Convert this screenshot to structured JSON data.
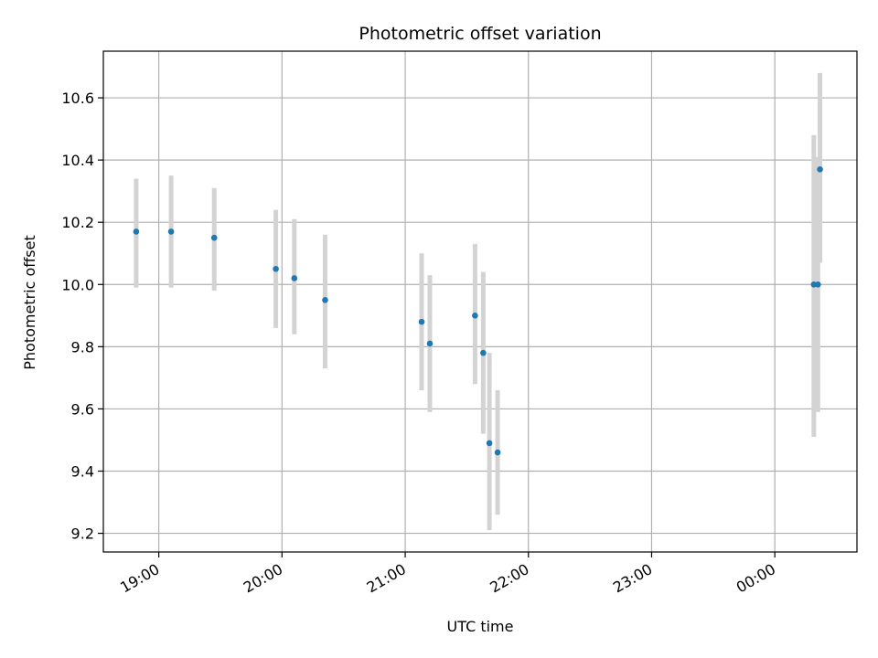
{
  "chart_data": {
    "type": "scatter",
    "title": "Photometric offset variation",
    "xlabel": "UTC time",
    "ylabel": "Photometric offset",
    "x_axis": {
      "kind": "time",
      "ticks": [
        "19:00",
        "20:00",
        "21:00",
        "22:00",
        "23:00",
        "00:00"
      ],
      "range": [
        "18:33",
        "00:40"
      ]
    },
    "y_axis": {
      "ticks": [
        "9.2",
        "9.4",
        "9.6",
        "9.8",
        "10.0",
        "10.2",
        "10.4",
        "10.6"
      ],
      "range": [
        9.14,
        10.75
      ]
    },
    "grid": true,
    "points": [
      {
        "time": "18:49",
        "value": 10.17,
        "err_low": 9.99,
        "err_high": 10.34
      },
      {
        "time": "19:06",
        "value": 10.17,
        "err_low": 9.99,
        "err_high": 10.35
      },
      {
        "time": "19:27",
        "value": 10.15,
        "err_low": 9.98,
        "err_high": 10.31
      },
      {
        "time": "19:57",
        "value": 10.05,
        "err_low": 9.86,
        "err_high": 10.24
      },
      {
        "time": "20:06",
        "value": 10.02,
        "err_low": 9.84,
        "err_high": 10.21
      },
      {
        "time": "20:21",
        "value": 9.95,
        "err_low": 9.73,
        "err_high": 10.16
      },
      {
        "time": "21:08",
        "value": 9.88,
        "err_low": 9.66,
        "err_high": 10.1
      },
      {
        "time": "21:12",
        "value": 9.81,
        "err_low": 9.59,
        "err_high": 10.03
      },
      {
        "time": "21:34",
        "value": 9.9,
        "err_low": 9.68,
        "err_high": 10.13
      },
      {
        "time": "21:38",
        "value": 9.78,
        "err_low": 9.52,
        "err_high": 10.04
      },
      {
        "time": "21:41",
        "value": 9.49,
        "err_low": 9.21,
        "err_high": 9.78
      },
      {
        "time": "21:45",
        "value": 9.46,
        "err_low": 9.26,
        "err_high": 9.66
      },
      {
        "time": "00:19",
        "value": 10.0,
        "err_low": 9.51,
        "err_high": 10.48
      },
      {
        "time": "00:21",
        "value": 10.0,
        "err_low": 9.59,
        "err_high": 10.41
      },
      {
        "time": "00:22",
        "value": 10.37,
        "err_low": 10.07,
        "err_high": 10.68
      }
    ],
    "colors": {
      "marker": "#1f77b4",
      "errorbar": "#d3d3d3",
      "grid": "#b0b0b0",
      "axis": "#000000"
    }
  }
}
